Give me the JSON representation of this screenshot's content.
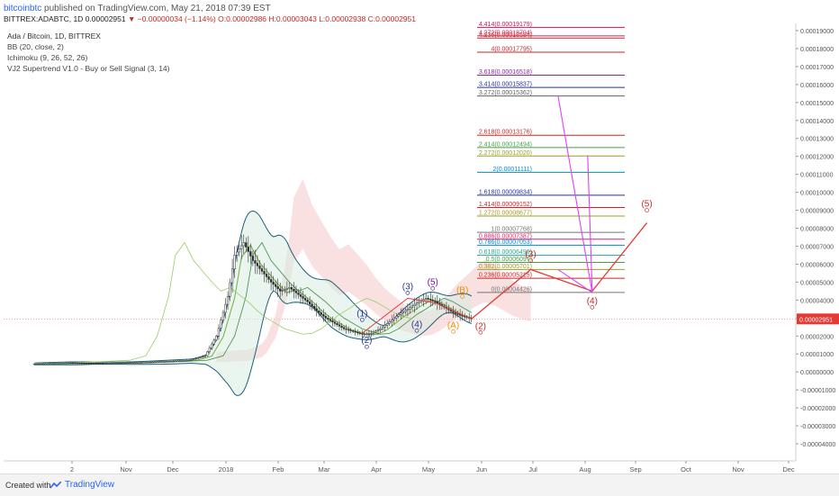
{
  "header": {
    "publisher": "bitcoinbtc",
    "published_text": "published on TradingView.com, May 21, 2018 07:39 EST",
    "symbol_line": "BITTREX:ADABTC, 1D",
    "last": "0.00002951",
    "change": "−0.00000034 (−1.14%)",
    "open": "O:0.00002986",
    "high": "H:0.00003043",
    "low": "L:0.00002938",
    "close": "C:0.00002951"
  },
  "legend": {
    "title": "Ada / Bitcoin, 1D, BITTREX",
    "indicators": [
      "BB (20, close, 2)",
      "Ichimoku (9, 26, 52, 26)",
      "VJ2 Supertrend V1.0 - Buy or Sell Signal (3, 14)"
    ]
  },
  "footer": {
    "created": "Created with",
    "brand": "TradingView"
  },
  "colors": {
    "candle_up": "#2a2a2a",
    "candle_down": "#2a2a2a",
    "bb": "#1f5f7a",
    "bb_fill": "#d8ece4",
    "kumo": "#f4c9c9",
    "ichimoku_green": "#7ab648",
    "elliott_main": "#e53935",
    "fib_extension": "#e040fb",
    "price_tag": "#e53935"
  },
  "chart_data": {
    "type": "line",
    "x_axis_labels": [
      "2",
      "Nov",
      "Dec",
      "2018",
      "Feb",
      "Mar",
      "Apr",
      "May",
      "Jun",
      "Jul",
      "Aug",
      "Sep",
      "Oct",
      "Nov",
      "Dec"
    ],
    "y_axis_labels": [
      "0.00019000",
      "0.00018000",
      "0.00017000",
      "0.00016000",
      "0.00015000",
      "0.00014000",
      "0.00013000",
      "0.00012000",
      "0.00011000",
      "0.00010000",
      "0.00009000",
      "0.00008000",
      "0.00007000",
      "0.00006000",
      "0.00005000",
      "0.00004000",
      "0.00003000",
      "0.00002000",
      "0.00001000",
      "0.00000000",
      "-0.00001000",
      "-0.00002000",
      "-0.00003000",
      "-0.00004000"
    ],
    "ylim": [
      -4e-05,
      0.00019
    ],
    "last_price": "0.00002951",
    "price_series": {
      "name": "ADA/BTC close",
      "points": [
        [
          0,
          4.5e-06
        ],
        [
          15,
          5e-06
        ],
        [
          30,
          4.8e-06
        ],
        [
          45,
          5.2e-06
        ],
        [
          60,
          6e-06
        ],
        [
          68,
          6.5e-06
        ],
        [
          75,
          9e-06
        ],
        [
          80,
          2e-05
        ],
        [
          85,
          4.2e-05
        ],
        [
          88,
          6.5e-05
        ],
        [
          92,
          7.2e-05
        ],
        [
          96,
          6.2e-05
        ],
        [
          100,
          5.6e-05
        ],
        [
          104,
          5e-05
        ],
        [
          108,
          4.5e-05
        ],
        [
          112,
          4.7e-05
        ],
        [
          116,
          4.3e-05
        ],
        [
          120,
          3.9e-05
        ],
        [
          124,
          3.4e-05
        ],
        [
          128,
          3e-05
        ],
        [
          132,
          2.7e-05
        ],
        [
          136,
          2.4e-05
        ],
        [
          140,
          2.25e-05
        ],
        [
          144,
          2.1e-05
        ],
        [
          148,
          2.15e-05
        ],
        [
          152,
          2.4e-05
        ],
        [
          156,
          2.8e-05
        ],
        [
          160,
          3.2e-05
        ],
        [
          164,
          3.5e-05
        ],
        [
          168,
          3.85e-05
        ],
        [
          172,
          4.1e-05
        ],
        [
          176,
          3.9e-05
        ],
        [
          180,
          3.6e-05
        ],
        [
          184,
          3.3e-05
        ],
        [
          188,
          3.1e-05
        ],
        [
          192,
          2.95e-05
        ]
      ]
    },
    "elliott_wave_projection": {
      "points": [
        [
          192,
          2.95e-05
        ],
        [
          218,
          5.7e-05
        ],
        [
          245,
          4.5e-05
        ],
        [
          269,
          8.3e-05
        ]
      ]
    },
    "fib_extension_lines": [
      [
        225,
        4.42e-05,
        0.0001537
      ],
      [
        238,
        4.5e-05,
        0.0001205
      ],
      [
        225,
        4.42e-05,
        5.7e-05
      ]
    ],
    "wave_labels": [
      {
        "text": "(1)",
        "x": 144,
        "y": 2.9e-05,
        "color": "#283593"
      },
      {
        "text": "(2)",
        "x": 146,
        "y": 1.4e-05,
        "color": "#283593"
      },
      {
        "text": "(3)",
        "x": 164,
        "y": 4.4e-05,
        "color": "#283593"
      },
      {
        "text": "(4)",
        "x": 168,
        "y": 2.3e-05,
        "color": "#283593"
      },
      {
        "text": "(5)",
        "x": 175,
        "y": 4.65e-05,
        "color": "#6a1b9a"
      },
      {
        "text": "(A)",
        "x": 184,
        "y": 2.25e-05,
        "color": "#ef8c00"
      },
      {
        "text": "(B)",
        "x": 188,
        "y": 4.2e-05,
        "color": "#ef8c00"
      },
      {
        "text": "(2)",
        "x": 196,
        "y": 2.2e-05,
        "color": "#c62828"
      },
      {
        "text": "(3)",
        "x": 218,
        "y": 6.2e-05,
        "color": "#c62828"
      },
      {
        "text": "(4)",
        "x": 245,
        "y": 3.6e-05,
        "color": "#c62828"
      },
      {
        "text": "(5)",
        "x": 269,
        "y": 9e-05,
        "color": "#c62828"
      }
    ],
    "fib_levels": [
      {
        "label": "4.414(0.00019179)",
        "value": 0.00019179,
        "color": "#c2185b"
      },
      {
        "label": "4.272(0.00018704)",
        "value": 0.00018704,
        "color": "#d81b60"
      },
      {
        "label": "4.236(0.00018584)",
        "value": 0.00018584,
        "color": "#c62828"
      },
      {
        "label": "4(0.00017795)",
        "value": 0.00017795,
        "color": "#c62828"
      },
      {
        "label": "3.618(0.00016518)",
        "value": 0.00016518,
        "color": "#8e24aa"
      },
      {
        "label": "3.414(0.00015837)",
        "value": 0.00015837,
        "color": "#283593"
      },
      {
        "label": "3.272(0.00015362)",
        "value": 0.00015362,
        "color": "#616161"
      },
      {
        "label": "2.618(0.00013176)",
        "value": 0.00013176,
        "color": "#c62828"
      },
      {
        "label": "2.414(0.00012494)",
        "value": 0.00012494,
        "color": "#43a047"
      },
      {
        "label": "2.272(0.00012020)",
        "value": 0.0001202,
        "color": "#9e9d24"
      },
      {
        "label": "2(0.00011111)",
        "value": 0.00011111,
        "color": "#0288d1"
      },
      {
        "label": "1.618(0.00009834)",
        "value": 9.834e-05,
        "color": "#283593"
      },
      {
        "label": "1.414(0.00009152)",
        "value": 9.152e-05,
        "color": "#c62828"
      },
      {
        "label": "1.272(0.00008677)",
        "value": 8.677e-05,
        "color": "#9e9d24"
      },
      {
        "label": "1(0.00007768)",
        "value": 7.768e-05,
        "color": "#757575"
      },
      {
        "label": "0.886(0.00007387)",
        "value": 7.387e-05,
        "color": "#e91e63"
      },
      {
        "label": "0.786(0.00007053)",
        "value": 7.053e-05,
        "color": "#0288d1"
      },
      {
        "label": "0.618(0.00006492)",
        "value": 6.492e-05,
        "color": "#26a69a"
      },
      {
        "label": "0.5(0.00006097)",
        "value": 6.097e-05,
        "color": "#43a047"
      },
      {
        "label": "0.382(0.00005701)",
        "value": 5.701e-05,
        "color": "#9e9d24"
      },
      {
        "label": "0.236(0.00005215)",
        "value": 5.215e-05,
        "color": "#c62828"
      },
      {
        "label": "0(0.00004426)",
        "value": 4.426e-05,
        "color": "#757575"
      }
    ]
  }
}
